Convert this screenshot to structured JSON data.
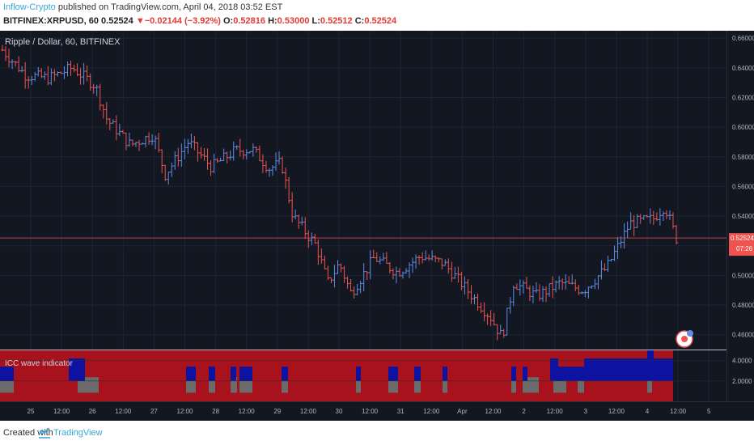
{
  "header": {
    "author": "Inflow-Crypto",
    "published_text": "published on TradingView.com, April 04, 2018 03:52 EST",
    "symbol": "BITFINEX:XRPUSD, 60",
    "last": "0.52524",
    "change": "▼−0.02144 (−3.92%)",
    "o_label": "O:",
    "o_value": "0.52816",
    "h_label": "H:",
    "h_value": "0.53000",
    "l_label": "L:",
    "l_value": "0.52512",
    "c_label": "C:",
    "c_value": "0.52524"
  },
  "chart_title": "Ripple / Dollar, 60, BITFINEX",
  "indicator_title": "ICC wave indicator",
  "price_tag": "0.52524",
  "countdown_tag": "07:26",
  "footer": {
    "created": "Created with",
    "brand": "TradingView"
  },
  "colors": {
    "background": "#131722",
    "up": "#5b8ee6",
    "down": "#ef5350",
    "grid": "#1e2433",
    "panel_red": "#a8121c",
    "panel_blue": "#0d13a0",
    "panel_gray": "#6b6b6b"
  },
  "chart_data": [
    {
      "type": "ohlc",
      "title": "Ripple / Dollar, 60, BITFINEX",
      "x_tick_labels": [
        "25",
        "12:00",
        "26",
        "12:00",
        "27",
        "12:00",
        "28",
        "12:00",
        "29",
        "12:00",
        "30",
        "12:00",
        "31",
        "12:00",
        "Apr",
        "12:00",
        "2",
        "12:00",
        "3",
        "12:00",
        "4",
        "12:00",
        "5"
      ],
      "y_tick_labels": [
        "0.46000",
        "0.48000",
        "0.50000",
        "0.52000",
        "0.54000",
        "0.56000",
        "0.58000",
        "0.60000",
        "0.62000",
        "0.64000",
        "0.66000"
      ],
      "ylim": [
        0.45,
        0.665
      ],
      "last_price": 0.52524,
      "anchors": [
        {
          "t": 0,
          "p": 0.652
        },
        {
          "t": 2,
          "p": 0.635
        },
        {
          "t": 4,
          "p": 0.633
        },
        {
          "t": 6,
          "p": 0.64
        },
        {
          "t": 8,
          "p": 0.628
        },
        {
          "t": 9,
          "p": 0.605
        },
        {
          "t": 11,
          "p": 0.588
        },
        {
          "t": 13,
          "p": 0.595
        },
        {
          "t": 14,
          "p": 0.568
        },
        {
          "t": 16,
          "p": 0.59
        },
        {
          "t": 18,
          "p": 0.573
        },
        {
          "t": 20,
          "p": 0.584
        },
        {
          "t": 21.5,
          "p": 0.585
        },
        {
          "t": 23,
          "p": 0.572
        },
        {
          "t": 24,
          "p": 0.576
        },
        {
          "t": 25,
          "p": 0.54
        },
        {
          "t": 27,
          "p": 0.52
        },
        {
          "t": 28,
          "p": 0.495
        },
        {
          "t": 29,
          "p": 0.508
        },
        {
          "t": 30,
          "p": 0.488
        },
        {
          "t": 32,
          "p": 0.512
        },
        {
          "t": 34,
          "p": 0.502
        },
        {
          "t": 36,
          "p": 0.513
        },
        {
          "t": 38,
          "p": 0.508
        },
        {
          "t": 40,
          "p": 0.49
        },
        {
          "t": 42,
          "p": 0.472
        },
        {
          "t": 43,
          "p": 0.458
        },
        {
          "t": 44,
          "p": 0.495
        },
        {
          "t": 46,
          "p": 0.486
        },
        {
          "t": 48,
          "p": 0.495
        },
        {
          "t": 50,
          "p": 0.49
        },
        {
          "t": 52,
          "p": 0.505
        },
        {
          "t": 53,
          "p": 0.52
        },
        {
          "t": 54,
          "p": 0.535
        },
        {
          "t": 56,
          "p": 0.538
        },
        {
          "t": 57,
          "p": 0.547
        },
        {
          "t": 58,
          "p": 0.525
        }
      ]
    },
    {
      "type": "heatmap",
      "title": "ICC wave indicator",
      "y_tick_labels": [
        "2.0000",
        "4.0000"
      ],
      "ylim": [
        0,
        5
      ],
      "categories": [
        "red",
        "blue",
        "gray"
      ]
    }
  ]
}
